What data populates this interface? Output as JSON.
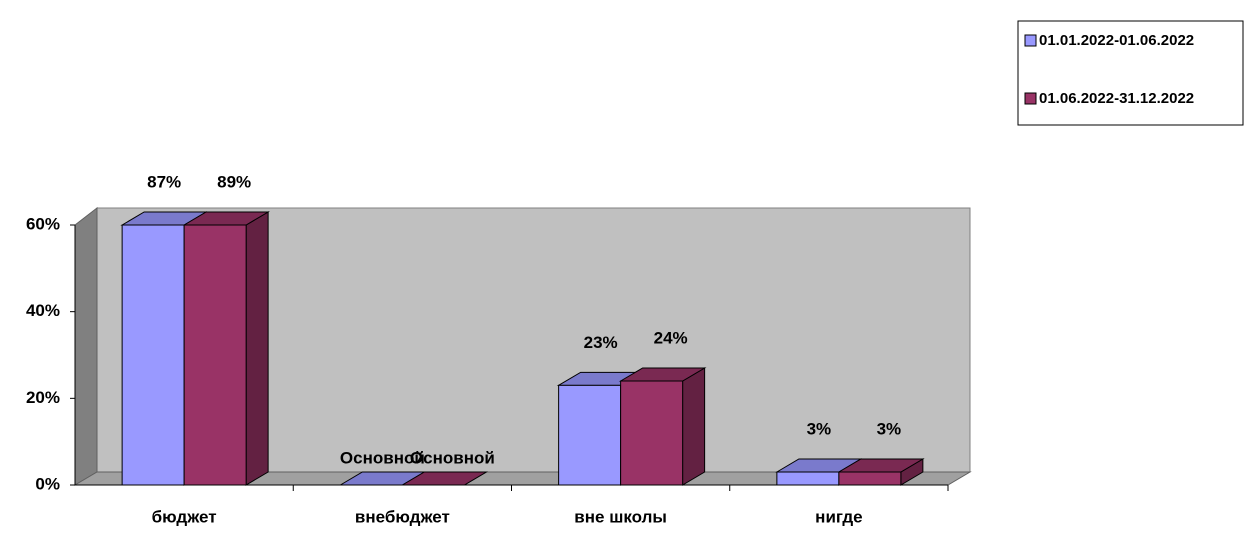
{
  "chart_data": {
    "type": "bar3d",
    "categories": [
      "бюджет",
      "внебюджет",
      "вне школы",
      "нигде"
    ],
    "series": [
      {
        "name": "01.01.2022-01.06.2022",
        "color": "#9999ff",
        "values": [
          87,
          0,
          23,
          3
        ],
        "value_labels": [
          "87%",
          "Основной",
          "23%",
          "3%"
        ]
      },
      {
        "name": "01.06.2022-31.12.2022",
        "color": "#993366",
        "values": [
          89,
          0,
          24,
          3
        ],
        "value_labels": [
          "89%",
          "Основной",
          "24%",
          "3%"
        ]
      }
    ],
    "ylim": [
      0,
      60
    ],
    "yticks": [
      {
        "value": 0,
        "label": "0%"
      },
      {
        "value": 20,
        "label": "20%"
      },
      {
        "value": 40,
        "label": "40%"
      },
      {
        "value": 60,
        "label": "60%"
      }
    ],
    "legend": "top-right"
  }
}
